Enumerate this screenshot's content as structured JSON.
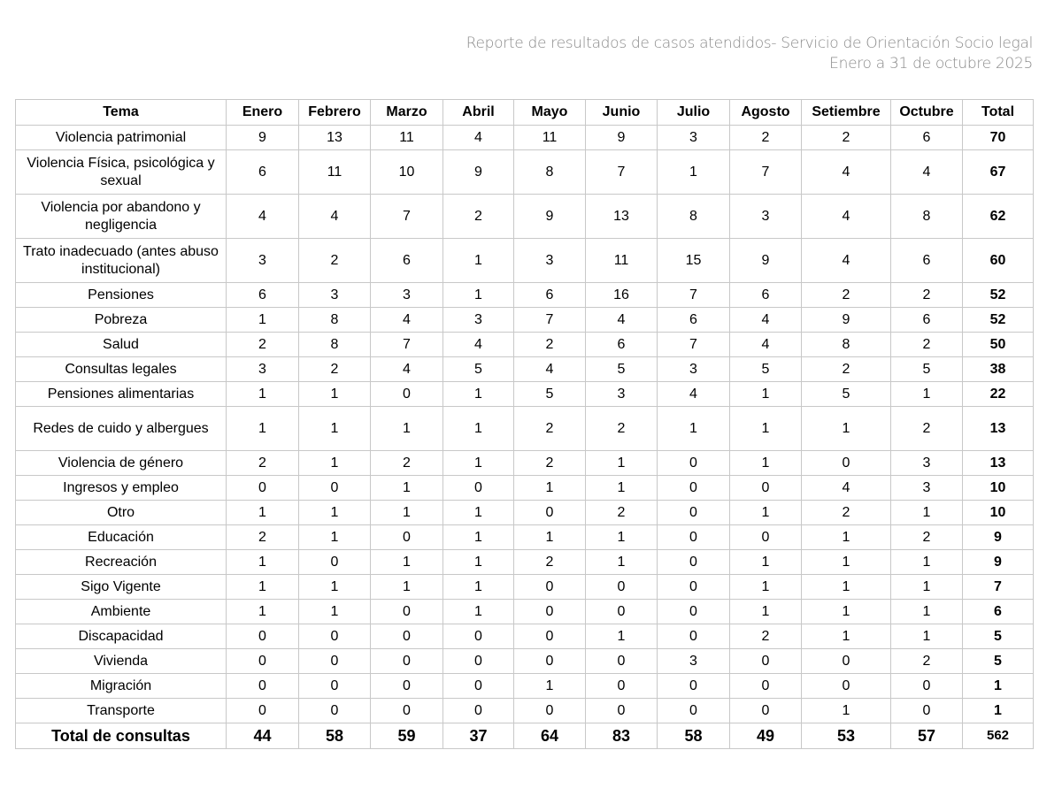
{
  "header": {
    "title": "Reporte de resultados de casos atendidos- Servicio de Orientación Socio legal",
    "subtitle": "Enero a 31 de octubre 2025"
  },
  "table": {
    "columns": [
      "Tema",
      "Enero",
      "Febrero",
      "Marzo",
      "Abril",
      "Mayo",
      "Junio",
      "Julio",
      "Agosto",
      "Setiembre",
      "Octubre",
      "Total"
    ],
    "rows": [
      {
        "tema": "Violencia patrimonial",
        "values": [
          9,
          13,
          11,
          4,
          11,
          9,
          3,
          2,
          2,
          6
        ],
        "total": 70
      },
      {
        "tema": "Violencia Física, psicológica y sexual",
        "values": [
          6,
          11,
          10,
          9,
          8,
          7,
          1,
          7,
          4,
          4
        ],
        "total": 67
      },
      {
        "tema": "Violencia por abandono y negligencia",
        "values": [
          4,
          4,
          7,
          2,
          9,
          13,
          8,
          3,
          4,
          8
        ],
        "total": 62
      },
      {
        "tema": "Trato inadecuado (antes abuso institucional)",
        "values": [
          3,
          2,
          6,
          1,
          3,
          11,
          15,
          9,
          4,
          6
        ],
        "total": 60
      },
      {
        "tema": "Pensiones",
        "values": [
          6,
          3,
          3,
          1,
          6,
          16,
          7,
          6,
          2,
          2
        ],
        "total": 52
      },
      {
        "tema": "Pobreza",
        "values": [
          1,
          8,
          4,
          3,
          7,
          4,
          6,
          4,
          9,
          6
        ],
        "total": 52
      },
      {
        "tema": "Salud",
        "values": [
          2,
          8,
          7,
          4,
          2,
          6,
          7,
          4,
          8,
          2
        ],
        "total": 50
      },
      {
        "tema": "Consultas legales",
        "values": [
          3,
          2,
          4,
          5,
          4,
          5,
          3,
          5,
          2,
          5
        ],
        "total": 38
      },
      {
        "tema": "Pensiones alimentarias",
        "values": [
          1,
          1,
          0,
          1,
          5,
          3,
          4,
          1,
          5,
          1
        ],
        "total": 22
      },
      {
        "tema": "Redes de cuido y albergues",
        "values": [
          1,
          1,
          1,
          1,
          2,
          2,
          1,
          1,
          1,
          2
        ],
        "total": 13
      },
      {
        "tema": "Violencia de género",
        "values": [
          2,
          1,
          2,
          1,
          2,
          1,
          0,
          1,
          0,
          3
        ],
        "total": 13
      },
      {
        "tema": "Ingresos y empleo",
        "values": [
          0,
          0,
          1,
          0,
          1,
          1,
          0,
          0,
          4,
          3
        ],
        "total": 10
      },
      {
        "tema": "Otro",
        "values": [
          1,
          1,
          1,
          1,
          0,
          2,
          0,
          1,
          2,
          1
        ],
        "total": 10
      },
      {
        "tema": "Educación",
        "values": [
          2,
          1,
          0,
          1,
          1,
          1,
          0,
          0,
          1,
          2
        ],
        "total": 9
      },
      {
        "tema": "Recreación",
        "values": [
          1,
          0,
          1,
          1,
          2,
          1,
          0,
          1,
          1,
          1
        ],
        "total": 9
      },
      {
        "tema": "Sigo Vigente",
        "values": [
          1,
          1,
          1,
          1,
          0,
          0,
          0,
          1,
          1,
          1
        ],
        "total": 7
      },
      {
        "tema": "Ambiente",
        "values": [
          1,
          1,
          0,
          1,
          0,
          0,
          0,
          1,
          1,
          1
        ],
        "total": 6
      },
      {
        "tema": "Discapacidad",
        "values": [
          0,
          0,
          0,
          0,
          0,
          1,
          0,
          2,
          1,
          1
        ],
        "total": 5
      },
      {
        "tema": "Vivienda",
        "values": [
          0,
          0,
          0,
          0,
          0,
          0,
          3,
          0,
          0,
          2
        ],
        "total": 5
      },
      {
        "tema": "Migración",
        "values": [
          0,
          0,
          0,
          0,
          1,
          0,
          0,
          0,
          0,
          0
        ],
        "total": 1
      },
      {
        "tema": "Transporte",
        "values": [
          0,
          0,
          0,
          0,
          0,
          0,
          0,
          0,
          1,
          0
        ],
        "total": 1
      }
    ],
    "grand_total": {
      "tema": "Total de consultas",
      "values": [
        44,
        58,
        59,
        37,
        64,
        83,
        58,
        49,
        53,
        57
      ],
      "total": 562
    }
  }
}
